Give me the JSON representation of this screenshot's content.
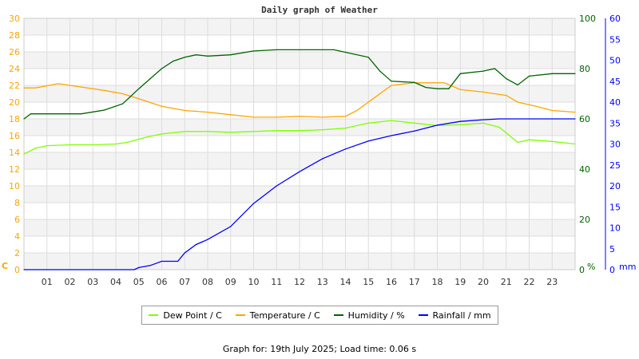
{
  "chart_data": {
    "type": "line",
    "title": "Daily graph of Weather",
    "x_ticks": [
      "01",
      "02",
      "03",
      "04",
      "05",
      "06",
      "07",
      "08",
      "09",
      "10",
      "11",
      "12",
      "13",
      "14",
      "15",
      "16",
      "17",
      "18",
      "19",
      "20",
      "21",
      "22",
      "23"
    ],
    "xlim": [
      0,
      24
    ],
    "axes": {
      "left": {
        "label": "C",
        "ylim": [
          0,
          30
        ],
        "ticks": [
          0,
          2,
          4,
          6,
          8,
          10,
          12,
          14,
          16,
          18,
          20,
          22,
          24,
          26,
          28,
          30
        ],
        "color": "#ffa500"
      },
      "right1": {
        "label": "%",
        "ylim": [
          0,
          100
        ],
        "ticks": [
          0,
          20,
          40,
          60,
          80,
          100
        ],
        "color": "#006400"
      },
      "right2": {
        "label": "mm",
        "ylim": [
          0,
          60
        ],
        "ticks": [
          0,
          5,
          10,
          15,
          20,
          25,
          30,
          35,
          40,
          45,
          50,
          55,
          60
        ],
        "color": "#0000ff"
      }
    },
    "series": [
      {
        "name": "Dew Point / C",
        "axis": "left",
        "color": "#80ff00",
        "x": [
          0,
          0.5,
          1,
          2,
          3,
          4,
          4.5,
          5.3,
          6,
          7,
          8,
          9,
          10,
          11,
          12,
          13,
          14,
          15,
          16,
          17,
          18,
          19,
          20,
          20.7,
          21.5,
          22,
          23,
          24
        ],
        "y": [
          13.8,
          14.5,
          14.8,
          14.9,
          14.9,
          15,
          15.2,
          15.8,
          16.2,
          16.5,
          16.5,
          16.4,
          16.5,
          16.6,
          16.6,
          16.7,
          16.9,
          17.5,
          17.8,
          17.5,
          17.2,
          17.3,
          17.5,
          17,
          15.2,
          15.5,
          15.3,
          15
        ]
      },
      {
        "name": "Temperature / C",
        "axis": "left",
        "color": "#ffa500",
        "x": [
          0,
          0.5,
          1.5,
          2.5,
          3.5,
          4.3,
          5,
          6,
          7,
          8,
          9,
          10,
          11,
          12,
          13,
          14,
          14.5,
          15.2,
          16,
          17,
          18,
          18.3,
          19,
          20,
          21,
          21.5,
          22.3,
          23,
          24
        ],
        "y": [
          21.7,
          21.7,
          22.2,
          21.8,
          21.4,
          21,
          20.4,
          19.5,
          19,
          18.8,
          18.5,
          18.2,
          18.2,
          18.3,
          18.2,
          18.3,
          19,
          20.4,
          22,
          22.3,
          22.3,
          22.3,
          21.5,
          21.2,
          20.8,
          20,
          19.5,
          19,
          18.8
        ]
      },
      {
        "name": "Humidity / %",
        "axis": "right1",
        "color": "#006400",
        "x": [
          0,
          0.3,
          1,
          2.5,
          3.5,
          4.3,
          5,
          5.5,
          6,
          6.5,
          7,
          7.5,
          8,
          9,
          10,
          11,
          13.5,
          14,
          15,
          15.5,
          16,
          17,
          17.5,
          18,
          18.5,
          19,
          20,
          20.5,
          21,
          21.5,
          22,
          23,
          24
        ],
        "y": [
          60,
          62,
          62,
          62,
          63.5,
          66,
          72,
          76,
          80,
          83,
          84.5,
          85.5,
          85,
          85.5,
          87,
          87.5,
          87.5,
          86.5,
          84.5,
          79,
          75,
          74.5,
          72.5,
          72,
          72,
          78,
          79,
          80,
          76,
          73.5,
          77,
          78,
          78
        ]
      },
      {
        "name": "Rainfall / mm",
        "axis": "right2",
        "color": "#0000ff",
        "x": [
          0,
          4.8,
          5,
          5.5,
          6,
          6.7,
          7,
          7.5,
          8,
          9,
          10,
          11,
          12,
          13,
          14,
          15,
          16,
          17,
          18,
          19,
          20,
          20.7,
          24
        ],
        "y": [
          0,
          0,
          0.5,
          1,
          2,
          2,
          4,
          6,
          7.2,
          10.3,
          15.8,
          20,
          23.4,
          26.5,
          28.8,
          30.7,
          32,
          33.1,
          34.5,
          35.4,
          35.8,
          36,
          36
        ]
      }
    ]
  },
  "footer": "Graph for: 19th July 2025; Load time: 0.06 s"
}
